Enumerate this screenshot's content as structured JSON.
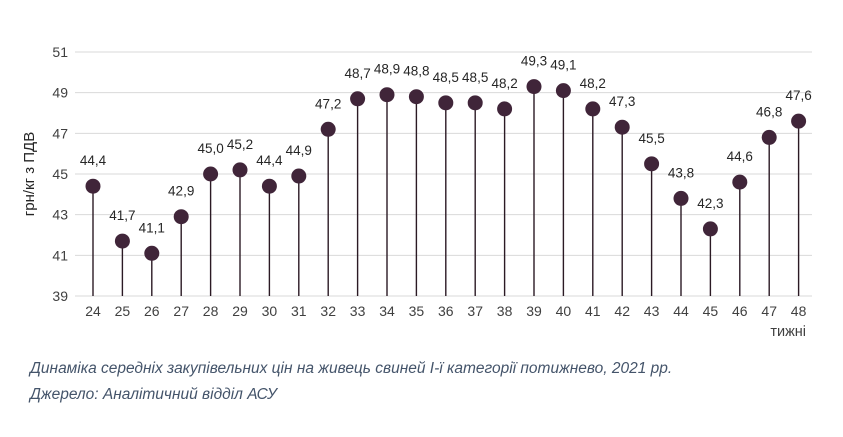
{
  "chart_data": {
    "type": "scatter",
    "variant": "lollipop",
    "title": "Динаміка середніх закупівельних цін на живець свиней І-ї категорії потижнево, 2021 рр.",
    "source": "Джерело: Аналітичний відділ АСУ",
    "xlabel": "тижні",
    "ylabel": "грн/кг з ПДВ",
    "x": [
      24,
      25,
      26,
      27,
      28,
      29,
      30,
      31,
      32,
      33,
      34,
      35,
      36,
      37,
      38,
      39,
      40,
      41,
      42,
      43,
      44,
      45,
      46,
      47,
      48
    ],
    "values": [
      44.4,
      41.7,
      41.1,
      42.9,
      45.0,
      45.2,
      44.4,
      44.9,
      47.2,
      48.7,
      48.9,
      48.8,
      48.5,
      48.5,
      48.2,
      49.3,
      49.1,
      48.2,
      47.3,
      45.5,
      43.8,
      42.3,
      44.6,
      46.8,
      47.6
    ],
    "value_labels": [
      "44,4",
      "41,7",
      "41,1",
      "42,9",
      "45,0",
      "45,2",
      "44,4",
      "44,9",
      "47,2",
      "48,7",
      "48,9",
      "48,8",
      "48,5",
      "48,5",
      "48,2",
      "49,3",
      "49,1",
      "48,2",
      "47,3",
      "45,5",
      "43,8",
      "42,3",
      "44,6",
      "46,8",
      "47,6"
    ],
    "ylim": [
      39,
      51
    ],
    "yticks": [
      39,
      41,
      43,
      45,
      47,
      49,
      51
    ],
    "grid": true,
    "legend": false,
    "colors": {
      "marker": "#402539",
      "stem": "#2B1A24",
      "gridline": "#D9D9D9",
      "tick_text": "#404040",
      "value_label_text": "#262626",
      "axis_title_text": "#262626",
      "caption_text": "#44546A",
      "background": "#FFFFFF"
    }
  }
}
